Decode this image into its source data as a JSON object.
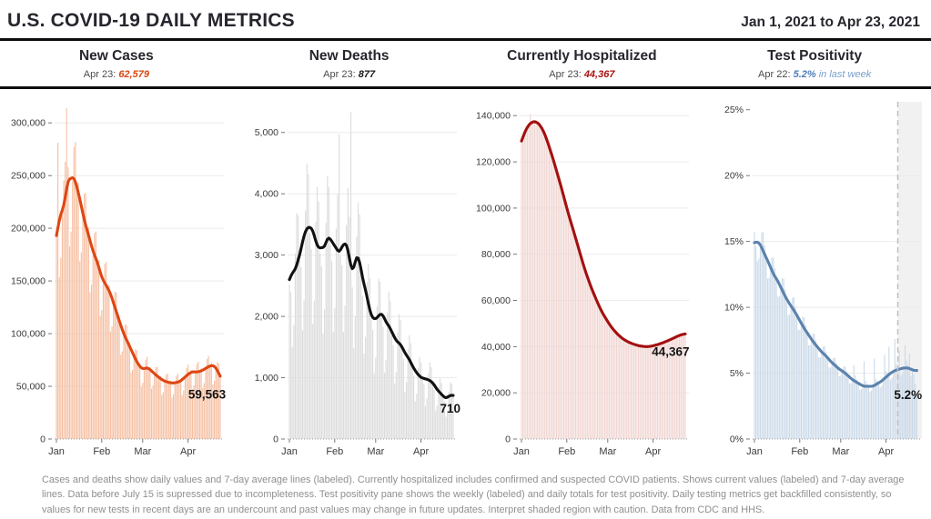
{
  "header": {
    "title": "U.S. COVID-19 DAILY METRICS",
    "date_range": "Jan 1, 2021 to Apr 23, 2021"
  },
  "colors": {
    "title_text": "#26262e",
    "rule": "#0d0d0d",
    "grid": "#ebebeb",
    "axis_text": "#3a3a3a",
    "footer_text": "#8f8f8f"
  },
  "footer": {
    "note": "Cases and deaths show daily values and 7-day average lines (labeled). Currently hospitalized includes confirmed and suspected COVID patients. Shows current values (labeled) and 7-day average lines. Data before July 15 is supressed due to incompleteness. Test positivity pane shows the weekly (labeled) and daily totals for test positivity. Daily testing metrics get backfilled consistently, so values for new tests in recent days are an undercount and past values may change in future updates. Interpret shaded region with caution. Data from CDC and HHS."
  },
  "chart_data": [
    {
      "type": "bar",
      "title": "New Cases",
      "subtitle_date": "Apr 23:",
      "subtitle_value": "62,579",
      "subtitle_suffix": "",
      "value_color": "#d9470f",
      "line_color": "#dd4714",
      "bar_color": "#f6c0a3",
      "x": {
        "days_total": 113,
        "tick_days": [
          0,
          31,
          59,
          90
        ],
        "tick_labels": [
          "Jan",
          "Feb",
          "Mar",
          "Apr"
        ]
      },
      "y": {
        "max": 320000,
        "ticks": [
          0,
          50000,
          100000,
          150000,
          200000,
          250000,
          300000
        ],
        "tick_labels": [
          "0",
          "50,000",
          "100,000",
          "150,000",
          "200,000",
          "250,000",
          "300,000"
        ]
      },
      "avg_line": [
        [
          0,
          193000
        ],
        [
          3,
          215000
        ],
        [
          5,
          219000
        ],
        [
          8,
          248000
        ],
        [
          10,
          246000
        ],
        [
          11,
          250000
        ],
        [
          13,
          245000
        ],
        [
          16,
          228000
        ],
        [
          19,
          208000
        ],
        [
          22,
          193000
        ],
        [
          25,
          178000
        ],
        [
          28,
          168000
        ],
        [
          31,
          153000
        ],
        [
          34,
          146000
        ],
        [
          37,
          138000
        ],
        [
          40,
          125000
        ],
        [
          43,
          112000
        ],
        [
          46,
          100000
        ],
        [
          49,
          91000
        ],
        [
          52,
          82000
        ],
        [
          55,
          73000
        ],
        [
          58,
          67000
        ],
        [
          60,
          66500
        ],
        [
          62,
          68000
        ],
        [
          64,
          66000
        ],
        [
          67,
          62000
        ],
        [
          70,
          58500
        ],
        [
          73,
          55500
        ],
        [
          76,
          54000
        ],
        [
          79,
          53000
        ],
        [
          82,
          53500
        ],
        [
          85,
          55000
        ],
        [
          88,
          59000
        ],
        [
          91,
          62500
        ],
        [
          93,
          64000
        ],
        [
          96,
          63500
        ],
        [
          99,
          64500
        ],
        [
          102,
          67000
        ],
        [
          105,
          69500
        ],
        [
          107,
          70000
        ],
        [
          109,
          68000
        ],
        [
          112,
          59563
        ]
      ],
      "line_last_day": 112,
      "bars_last_day": 112,
      "bar_weekly_factors": [
        1.0,
        1.04,
        0.74,
        0.8,
        0.98,
        1.12,
        1.15
      ],
      "bar_overrides": {
        "1": 281000,
        "7": 314000
      },
      "annotation": {
        "text": "59,563",
        "day": 103,
        "value": 38500
      },
      "shaded_from_day": null
    },
    {
      "type": "bar",
      "title": "New Deaths",
      "subtitle_date": "Apr 23:",
      "subtitle_value": "877",
      "subtitle_suffix": "",
      "value_color": "#1a1a1a",
      "line_color": "#111111",
      "bar_color": "#dcdcdc",
      "x": {
        "days_total": 113,
        "tick_days": [
          0,
          31,
          59,
          90
        ],
        "tick_labels": [
          "Jan",
          "Feb",
          "Mar",
          "Apr"
        ]
      },
      "y": {
        "max": 5500,
        "ticks": [
          0,
          1000,
          2000,
          3000,
          4000,
          5000
        ],
        "tick_labels": [
          "0",
          "1,000",
          "2,000",
          "3,000",
          "4,000",
          "5,000"
        ]
      },
      "avg_line": [
        [
          0,
          2600
        ],
        [
          2,
          2720
        ],
        [
          4,
          2750
        ],
        [
          7,
          3000
        ],
        [
          10,
          3330
        ],
        [
          12,
          3450
        ],
        [
          14,
          3460
        ],
        [
          16,
          3420
        ],
        [
          18,
          3220
        ],
        [
          20,
          3100
        ],
        [
          22,
          3130
        ],
        [
          24,
          3110
        ],
        [
          26,
          3300
        ],
        [
          28,
          3270
        ],
        [
          30,
          3180
        ],
        [
          32,
          3120
        ],
        [
          34,
          3020
        ],
        [
          36,
          3150
        ],
        [
          38,
          3200
        ],
        [
          40,
          3150
        ],
        [
          41,
          2900
        ],
        [
          43,
          2750
        ],
        [
          44,
          2700
        ],
        [
          45,
          2950
        ],
        [
          46,
          3000
        ],
        [
          48,
          2930
        ],
        [
          50,
          2600
        ],
        [
          52,
          2450
        ],
        [
          54,
          2200
        ],
        [
          56,
          2000
        ],
        [
          58,
          1950
        ],
        [
          60,
          1970
        ],
        [
          62,
          2050
        ],
        [
          64,
          2030
        ],
        [
          66,
          1900
        ],
        [
          68,
          1850
        ],
        [
          70,
          1750
        ],
        [
          73,
          1600
        ],
        [
          76,
          1550
        ],
        [
          79,
          1400
        ],
        [
          82,
          1300
        ],
        [
          85,
          1150
        ],
        [
          88,
          1050
        ],
        [
          90,
          1000
        ],
        [
          93,
          980
        ],
        [
          96,
          960
        ],
        [
          99,
          890
        ],
        [
          101,
          800
        ],
        [
          103,
          760
        ],
        [
          105,
          700
        ],
        [
          107,
          660
        ],
        [
          109,
          700
        ],
        [
          111,
          720
        ],
        [
          112,
          710
        ]
      ],
      "line_last_day": 112,
      "bars_last_day": 112,
      "bar_weekly_factors": [
        0.97,
        0.9,
        0.55,
        0.68,
        1.1,
        1.3,
        1.25
      ],
      "bar_overrides": {
        "34": 4970,
        "42": 5330
      },
      "annotation": {
        "text": "710",
        "day": 110,
        "value": 430
      },
      "shaded_from_day": null
    },
    {
      "type": "bar",
      "title": "Currently Hospitalized",
      "subtitle_date": "Apr 23:",
      "subtitle_value": "44,367",
      "subtitle_suffix": "",
      "value_color": "#ab1111",
      "line_color": "#a31010",
      "bar_color": "#f0d6d3",
      "x": {
        "days_total": 113,
        "tick_days": [
          0,
          31,
          59,
          90
        ],
        "tick_labels": [
          "Jan",
          "Feb",
          "Mar",
          "Apr"
        ]
      },
      "y": {
        "max": 146000,
        "ticks": [
          0,
          20000,
          40000,
          60000,
          80000,
          100000,
          120000,
          140000
        ],
        "tick_labels": [
          "0",
          "20,000",
          "40,000",
          "60,000",
          "80,000",
          "100,000",
          "120,000",
          "140,000"
        ]
      },
      "avg_line": [
        [
          0,
          129000
        ],
        [
          3,
          134000
        ],
        [
          6,
          136800
        ],
        [
          9,
          137600
        ],
        [
          12,
          136500
        ],
        [
          15,
          133500
        ],
        [
          18,
          128500
        ],
        [
          21,
          122500
        ],
        [
          24,
          116000
        ],
        [
          27,
          109500
        ],
        [
          31,
          100000
        ],
        [
          34,
          93500
        ],
        [
          37,
          87000
        ],
        [
          40,
          80500
        ],
        [
          43,
          74000
        ],
        [
          46,
          68500
        ],
        [
          49,
          63500
        ],
        [
          52,
          59000
        ],
        [
          55,
          55000
        ],
        [
          59,
          50800
        ],
        [
          62,
          48000
        ],
        [
          65,
          45800
        ],
        [
          68,
          44000
        ],
        [
          71,
          42700
        ],
        [
          74,
          41700
        ],
        [
          77,
          41000
        ],
        [
          80,
          40400
        ],
        [
          83,
          40100
        ],
        [
          86,
          40000
        ],
        [
          89,
          40200
        ],
        [
          92,
          40700
        ],
        [
          95,
          41300
        ],
        [
          98,
          42000
        ],
        [
          101,
          42800
        ],
        [
          104,
          43700
        ],
        [
          107,
          44600
        ],
        [
          110,
          45300
        ],
        [
          112,
          45500
        ]
      ],
      "line_last_day": 112,
      "bars_last_day": 112,
      "bar_weekly_factors": [
        1.005,
        1.0,
        0.995,
        0.992,
        0.996,
        1.002,
        1.006
      ],
      "bar_overrides": {
        "6": 140800
      },
      "annotation": {
        "text": "44,367",
        "day": 102,
        "value": 36000
      },
      "shaded_from_day": null
    },
    {
      "type": "bar",
      "title": "Test Positivity",
      "subtitle_date": "Apr 22:",
      "subtitle_value": "5.2%",
      "subtitle_suffix": "in last week",
      "value_color": "#4d7fbb",
      "suffix_color": "#7a9fce",
      "line_color": "#5b82ad",
      "bar_color": "#ccdae9",
      "shade_color": "rgba(120,120,120,0.10)",
      "x": {
        "days_total": 113,
        "tick_days": [
          0,
          31,
          59,
          90
        ],
        "tick_labels": [
          "Jan",
          "Feb",
          "Mar",
          "Apr"
        ]
      },
      "y": {
        "max": 25.6,
        "ticks": [
          0,
          5,
          10,
          15,
          20,
          25
        ],
        "tick_labels": [
          "0%",
          "5%",
          "10%",
          "15%",
          "20%",
          "25%"
        ],
        "skip_top_gridline": true
      },
      "avg_line": [
        [
          0,
          14.9
        ],
        [
          2,
          15.0
        ],
        [
          4,
          14.8
        ],
        [
          7,
          14.0
        ],
        [
          10,
          13.3
        ],
        [
          13,
          12.5
        ],
        [
          16,
          12.0
        ],
        [
          19,
          11.3
        ],
        [
          22,
          10.6
        ],
        [
          25,
          10.1
        ],
        [
          28,
          9.6
        ],
        [
          31,
          9.0
        ],
        [
          34,
          8.4
        ],
        [
          37,
          7.9
        ],
        [
          40,
          7.4
        ],
        [
          43,
          7.0
        ],
        [
          46,
          6.6
        ],
        [
          49,
          6.3
        ],
        [
          52,
          5.9
        ],
        [
          55,
          5.6
        ],
        [
          58,
          5.3
        ],
        [
          61,
          5.1
        ],
        [
          64,
          4.8
        ],
        [
          67,
          4.5
        ],
        [
          70,
          4.3
        ],
        [
          73,
          4.1
        ],
        [
          75,
          4.0
        ],
        [
          78,
          4.0
        ],
        [
          81,
          4.0
        ],
        [
          84,
          4.2
        ],
        [
          87,
          4.4
        ],
        [
          90,
          4.7
        ],
        [
          93,
          5.0
        ],
        [
          96,
          5.2
        ],
        [
          99,
          5.3
        ],
        [
          102,
          5.4
        ],
        [
          105,
          5.4
        ],
        [
          107,
          5.3
        ],
        [
          109,
          5.2
        ],
        [
          111,
          5.2
        ]
      ],
      "line_last_day": 111,
      "bars_last_day": 111,
      "bar_weekly_factors": [
        1.05,
        0.98,
        0.9,
        0.92,
        1.0,
        1.08,
        1.1
      ],
      "bar_overrides": {
        "0": 15.7,
        "68": 5.6,
        "75": 5.9,
        "82": 6.1,
        "89": 6.4,
        "92": 7.0,
        "96": 7.6,
        "99": 6.7,
        "103": 7.1,
        "106": 6.5,
        "108": 5.4,
        "109": 4.9,
        "110": 4.2,
        "111": 3.3
      },
      "annotation": {
        "text": "5.2%",
        "day": 105,
        "value": 3.05
      },
      "shaded_from_day": 98
    }
  ]
}
